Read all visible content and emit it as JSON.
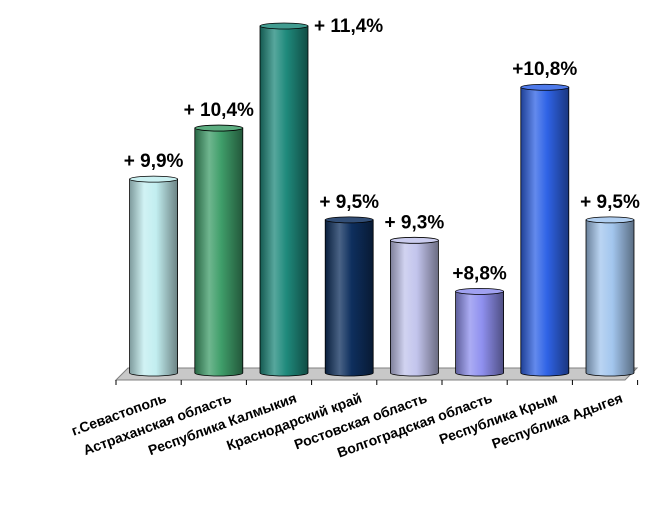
{
  "chart_data": {
    "type": "bar",
    "title": "",
    "xlabel": "",
    "ylabel": "",
    "ylim": [
      8.0,
      11.4
    ],
    "grid": false,
    "legend": "none",
    "categories": [
      "г.Севастополь",
      "Астраханская область",
      "Республика Калмыкия",
      "Краснодарский край",
      "Ростовская область",
      "Волгоградская область",
      "Республика Крым",
      "Республика Адыгея"
    ],
    "values": [
      9.9,
      10.4,
      11.4,
      9.5,
      9.3,
      8.8,
      10.8,
      9.5
    ],
    "data_labels": [
      "+ 9,9%",
      "+ 10,4%",
      "+ 11,4%",
      "+ 9,5%",
      "+ 9,3%",
      "+8,8%",
      "+10,8%",
      "+ 9,5%"
    ],
    "bar_colors": [
      "#c2eef0",
      "#3f9e6a",
      "#1f8a7c",
      "#0e2f5e",
      "#c2c4ec",
      "#8f90ef",
      "#2f63e6",
      "#a3c6ee"
    ],
    "base_color": "#c8c8c8"
  }
}
